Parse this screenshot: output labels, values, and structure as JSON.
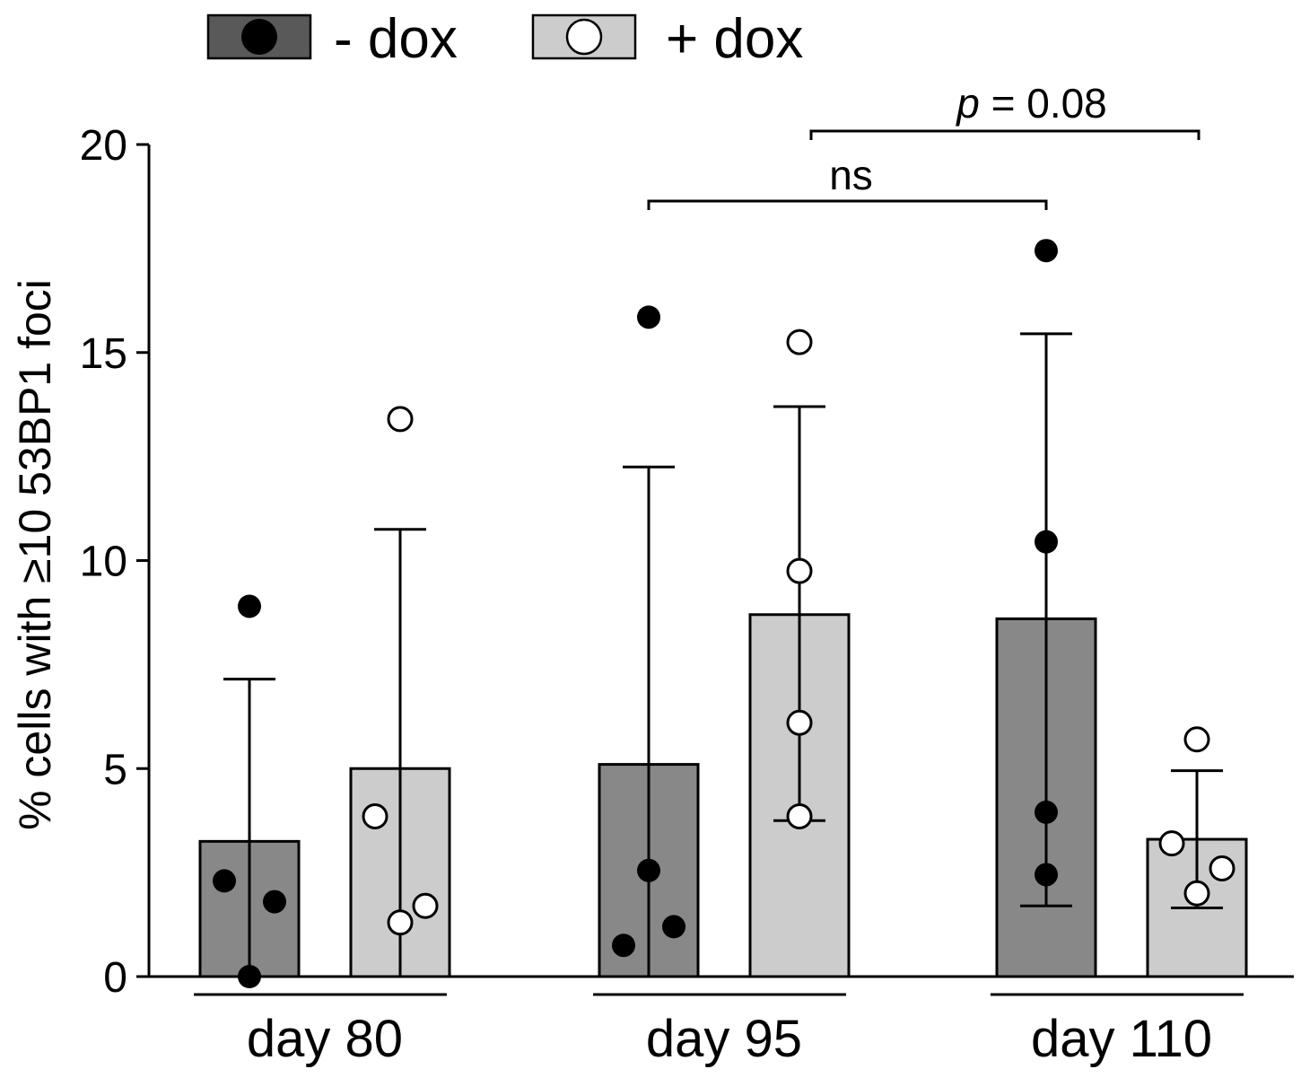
{
  "chart_data": {
    "type": "bar",
    "ylabel": "% cells with ≥10 53BP1 foci",
    "xlabel": "",
    "ylim": [
      0,
      20
    ],
    "yticks": [
      0,
      5,
      10,
      15,
      20
    ],
    "grid": false,
    "legend_position": "top-left",
    "categories": [
      "day 80",
      "day 95",
      "day 110"
    ],
    "series": [
      {
        "name": "- dox",
        "color": "#888888",
        "marker": "filled-circle",
        "values": [
          3.25,
          5.1,
          8.6
        ],
        "error_plus": [
          3.9,
          7.15,
          6.85
        ],
        "error_minus": [
          3.25,
          5.1,
          6.9
        ],
        "points": [
          [
            8.9,
            2.3,
            1.8,
            0.0
          ],
          [
            15.85,
            2.55,
            1.2,
            0.75
          ],
          [
            17.45,
            10.45,
            3.95,
            2.45
          ]
        ]
      },
      {
        "name": "+ dox",
        "color": "#cccccc",
        "marker": "open-circle",
        "values": [
          5.0,
          8.7,
          3.3
        ],
        "error_plus": [
          5.75,
          5.0,
          1.65
        ],
        "error_minus": [
          5.0,
          4.95,
          1.65
        ],
        "points": [
          [
            13.4,
            3.85,
            1.7,
            1.3
          ],
          [
            15.25,
            9.75,
            6.1,
            3.85
          ],
          [
            5.7,
            3.2,
            2.6,
            2.0
          ]
        ]
      }
    ],
    "annotations": [
      {
        "text": "ns",
        "from": "day 95 · - dox",
        "to": "day 110 · - dox"
      },
      {
        "text_italic": "p",
        "text": " = 0.08",
        "from": "day 95 · + dox",
        "to": "day 110 · + dox"
      }
    ]
  }
}
